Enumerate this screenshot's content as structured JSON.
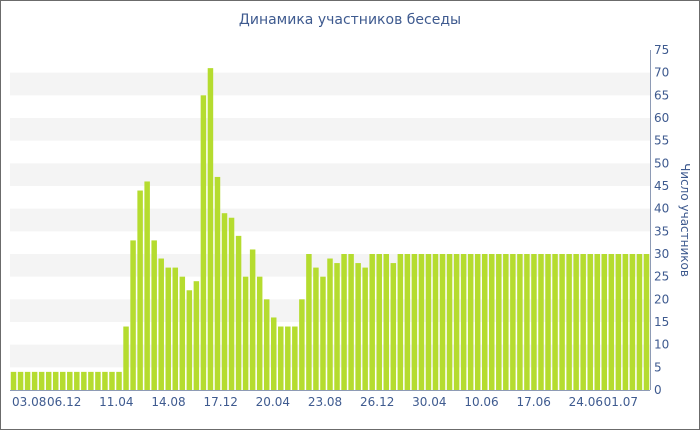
{
  "chart_data": {
    "type": "bar",
    "title": "Динамика участников беседы",
    "ylabel": "Число участников",
    "xlabel": "",
    "ylim": [
      0,
      75
    ],
    "y_ticks": [
      0,
      5,
      10,
      15,
      20,
      25,
      30,
      35,
      40,
      45,
      50,
      55,
      60,
      65,
      70,
      75
    ],
    "y_axis_side": "right",
    "grid": "alternating horizontal bands",
    "x_tick_labels": [
      "03.08",
      "06.12",
      "11.04",
      "14.08",
      "17.12",
      "20.04",
      "23.08",
      "26.12",
      "30.04",
      "10.06",
      "17.06",
      "24.06",
      "01.07"
    ],
    "bar_color": "#b5dc2f",
    "values": [
      4,
      4,
      4,
      4,
      4,
      4,
      4,
      4,
      4,
      4,
      4,
      4,
      4,
      4,
      4,
      4,
      14,
      33,
      44,
      46,
      33,
      29,
      27,
      27,
      25,
      22,
      24,
      65,
      71,
      47,
      39,
      38,
      34,
      25,
      31,
      25,
      20,
      16,
      14,
      14,
      14,
      20,
      30,
      27,
      25,
      29,
      28,
      30,
      30,
      28,
      27,
      30,
      30,
      30,
      28,
      30,
      30,
      30,
      30,
      30,
      30,
      30,
      30,
      30,
      30,
      30,
      30,
      30,
      30,
      30,
      30,
      30,
      30,
      30,
      30,
      30,
      30,
      30,
      30,
      30,
      30,
      30,
      30,
      30,
      30,
      30,
      30,
      30,
      30,
      30,
      30
    ]
  }
}
